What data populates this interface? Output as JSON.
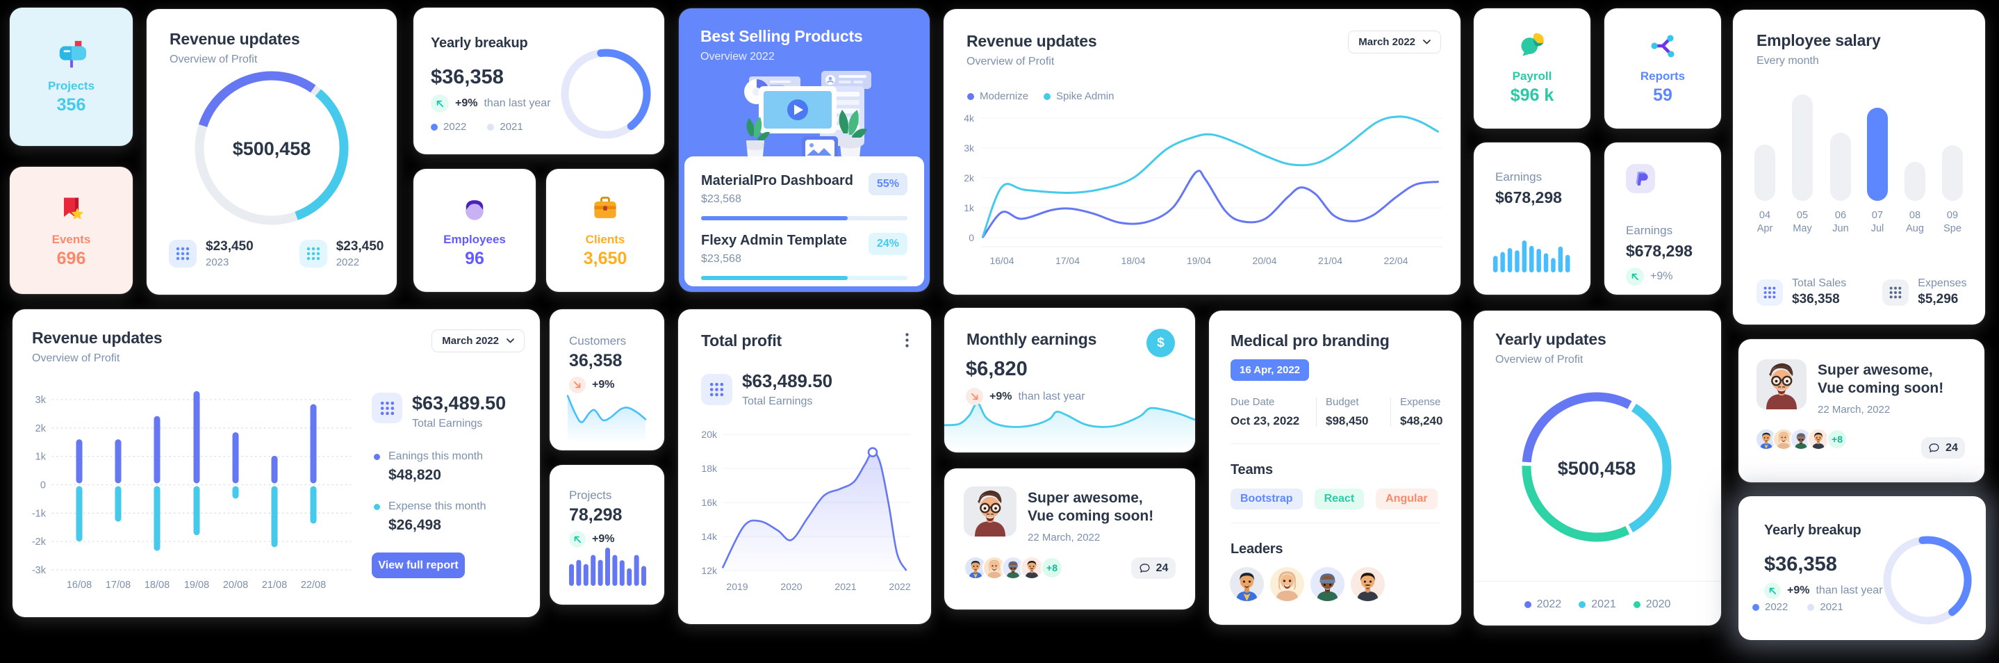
{
  "palette": {
    "primary": "#5D87FF",
    "indigo": "#6577F3",
    "sky": "#46CAEB",
    "sky_bars": "#49BEFF",
    "teal": "#2ED3A5",
    "teal_text": "#13C9A7",
    "orange": "#FFAE1F",
    "coral": "#FA896B",
    "purple": "#635BFF",
    "dark_text": "#2A3547",
    "muted_text": "#7C8FAC"
  },
  "cards": {
    "projects": {
      "label": "Projects",
      "value": "356"
    },
    "events": {
      "label": "Events",
      "value": "696"
    },
    "revenue_overview": {
      "title": "Revenue updates",
      "subtitle": "Overview of Profit",
      "center_value": "$500,458",
      "stats": [
        {
          "value": "$23,450",
          "year": "2023"
        },
        {
          "value": "$23,450",
          "year": "2022"
        }
      ]
    },
    "yearly_breakup": {
      "title": "Yearly breakup",
      "value": "$36,358",
      "delta": "+9%",
      "delta_note": "than last year",
      "legend": [
        "2022",
        "2021"
      ]
    },
    "employees": {
      "label": "Employees",
      "value": "96"
    },
    "clients": {
      "label": "Clients",
      "value": "3,650"
    },
    "best_selling": {
      "title": "Best Selling Products",
      "subtitle": "Overview 2022",
      "products": [
        {
          "name": "MaterialPro Dashboard",
          "amount": "$23,568",
          "badge": "55%"
        },
        {
          "name": "Flexy Admin Template",
          "amount": "$23,568",
          "badge": "24%"
        }
      ]
    },
    "revenue_line": {
      "title": "Revenue updates",
      "subtitle": "Overview of Profit",
      "dropdown": "March 2022"
    },
    "payroll": {
      "label": "Payroll",
      "value": "$96 k"
    },
    "reports": {
      "label": "Reports",
      "value": "59"
    },
    "earnings_sky": {
      "label": "Earnings",
      "value": "$678,298"
    },
    "earnings_paypal": {
      "label": "Earnings",
      "value": "$678,298",
      "delta": "+9%"
    },
    "employee_salary": {
      "title": "Employee salary",
      "subtitle": "Every month",
      "stats": [
        {
          "label": "Total Sales",
          "value": "$36,358"
        },
        {
          "label": "Expenses",
          "value": "$5,296"
        }
      ]
    },
    "revenue_bars": {
      "title": "Revenue updates",
      "subtitle": "Overview of Profit",
      "dropdown": "March 2022",
      "total": "$63,489.50",
      "total_label": "Total Earnings",
      "items": [
        {
          "label": "Eanings this month",
          "value": "$48,820"
        },
        {
          "label": "Expense this month",
          "value": "$26,498"
        }
      ],
      "button": "View full report"
    },
    "customers": {
      "label": "Customers",
      "value": "36,358",
      "delta": "+9%"
    },
    "projects_mini": {
      "label": "Projects",
      "value": "78,298",
      "delta": "+9%"
    },
    "total_profit": {
      "title": "Total profit",
      "value": "$63,489.50",
      "value_label": "Total Earnings"
    },
    "monthly_earnings": {
      "title": "Monthly earnings",
      "value": "$6,820",
      "delta": "+9%",
      "delta_note": "than last year",
      "icon_symbol": "$"
    },
    "post": {
      "title_line1": "Super awesome,",
      "title_line2": "Vue coming soon!",
      "date": "22 March, 2022",
      "more": "+8",
      "comments": "24"
    },
    "medical": {
      "title": "Medical pro branding",
      "date_chip": "16 Apr, 2022",
      "fields": [
        {
          "label": "Due Date",
          "value": "Oct 23, 2022"
        },
        {
          "label": "Budget",
          "value": "$98,450"
        },
        {
          "label": "Expense",
          "value": "$48,240"
        }
      ],
      "teams_label": "Teams",
      "teams": [
        "Bootstrap",
        "React",
        "Angular"
      ],
      "leaders_label": "Leaders"
    },
    "yearly_updates": {
      "title": "Yearly updates",
      "subtitle": "Overview of Profit",
      "center_value": "$500,458",
      "legend": [
        "2022",
        "2021",
        "2020"
      ]
    }
  },
  "chart_data": [
    {
      "id": "revenue_overview_donut",
      "type": "pie",
      "center_label": "$500,458",
      "track_color": "#E9EDF2",
      "segments": [
        {
          "name": "2023",
          "start_deg": 288,
          "sweep_deg": 107,
          "color": "#6577F3"
        },
        {
          "name": "2022",
          "start_deg": 40,
          "sweep_deg": 120,
          "color": "#46CAEB"
        }
      ]
    },
    {
      "id": "yearly_breakup_donut",
      "type": "pie",
      "track_color": "#E4E8FA",
      "segments": [
        {
          "name": "2022",
          "start_deg": -7,
          "sweep_deg": 149,
          "color": "#5D87FF"
        }
      ]
    },
    {
      "id": "best_selling_progress",
      "type": "bar",
      "items": [
        {
          "name": "MaterialPro Dashboard",
          "badge": "55%",
          "fill_pct": 71,
          "color": "#5D87FF",
          "track": "#E3ECFB",
          "badge_bg": "#E3ECFB",
          "badge_color": "#5D87FF"
        },
        {
          "name": "Flexy Admin Template",
          "badge": "24%",
          "fill_pct": 71,
          "color": "#46CAEB",
          "track": "#E0F6FD",
          "badge_bg": "#E0F6FD",
          "badge_color": "#46CAEB"
        }
      ]
    },
    {
      "id": "revenue_updates_line",
      "type": "line",
      "x_ticks": [
        "16/04",
        "17/04",
        "18/04",
        "19/04",
        "20/04",
        "21/04",
        "22/04"
      ],
      "y_ticks": [
        "0",
        "1k",
        "2k",
        "3k",
        "4k"
      ],
      "ylim": [
        0,
        4000
      ],
      "series": [
        {
          "name": "Modernize",
          "color": "#6577F3",
          "points": [
            [
              -0.29,
              0.02
            ],
            [
              0,
              0.85
            ],
            [
              0.3,
              0.63
            ],
            [
              0.75,
              0.92
            ],
            [
              1.05,
              0.97
            ],
            [
              1.4,
              0.8
            ],
            [
              1.8,
              0.5
            ],
            [
              2.2,
              0.52
            ],
            [
              2.6,
              1.0
            ],
            [
              2.95,
              2.18
            ],
            [
              3.1,
              1.95
            ],
            [
              3.4,
              0.9
            ],
            [
              3.65,
              0.55
            ],
            [
              4.0,
              0.62
            ],
            [
              4.35,
              1.35
            ],
            [
              4.55,
              1.68
            ],
            [
              4.78,
              1.45
            ],
            [
              5.05,
              0.75
            ],
            [
              5.35,
              0.55
            ],
            [
              5.65,
              0.75
            ],
            [
              6.0,
              1.35
            ],
            [
              6.3,
              1.78
            ],
            [
              6.64,
              1.87
            ]
          ]
        },
        {
          "name": "Spike Admin",
          "color": "#46CAEB",
          "points": [
            [
              -0.29,
              0.05
            ],
            [
              0,
              1.7
            ],
            [
              0.35,
              1.6
            ],
            [
              1,
              1.5
            ],
            [
              1.5,
              1.62
            ],
            [
              2,
              2.0
            ],
            [
              2.5,
              2.95
            ],
            [
              2.9,
              3.35
            ],
            [
              3.2,
              3.45
            ],
            [
              3.6,
              3.15
            ],
            [
              4.0,
              2.75
            ],
            [
              4.4,
              2.45
            ],
            [
              4.8,
              2.5
            ],
            [
              5.2,
              3.0
            ],
            [
              5.7,
              3.85
            ],
            [
              6.05,
              4.05
            ],
            [
              6.35,
              3.9
            ],
            [
              6.64,
              3.55
            ]
          ]
        }
      ]
    },
    {
      "id": "earnings_mini_bars",
      "type": "bar",
      "color": "#49BEFF",
      "values": [
        52,
        64,
        76,
        69,
        100,
        83,
        74,
        60,
        45,
        81,
        55
      ]
    },
    {
      "id": "employee_salary_bars",
      "type": "bar",
      "categories": [
        "04",
        "05",
        "06",
        "07",
        "08",
        "09"
      ],
      "categories2": [
        "Apr",
        "May",
        "Jun",
        "Jul",
        "Aug",
        "Spe"
      ],
      "values": [
        81,
        153,
        98,
        134,
        56,
        80
      ],
      "highlight_index": 3,
      "bar_color": "#EEF0F4",
      "highlight_color": "#5D87FF"
    },
    {
      "id": "revenue_posneg_bars",
      "type": "bar",
      "categories": [
        "16/08",
        "17/08",
        "18/08",
        "19/08",
        "20/08",
        "21/08",
        "22/08"
      ],
      "y_ticks": [
        "3k",
        "2k",
        "1k",
        "0",
        "-1k",
        "-2k",
        "-3k"
      ],
      "ylim": [
        -3000,
        3000
      ],
      "series": [
        {
          "name": "Earnings this month",
          "color": "#6577F3",
          "values": [
            1.6,
            1.6,
            2.42,
            3.3,
            1.85,
            1.02,
            2.84
          ]
        },
        {
          "name": "Expense this month",
          "color": "#46CAEB",
          "values": [
            -2.0,
            -1.3,
            -2.33,
            -1.78,
            -0.49,
            -2.2,
            -1.37
          ]
        }
      ]
    },
    {
      "id": "customers_spark",
      "type": "area",
      "color": "#49BEFF",
      "points": [
        [
          0,
          95
        ],
        [
          0.1,
          45
        ],
        [
          0.18,
          22
        ],
        [
          0.28,
          48
        ],
        [
          0.35,
          55
        ],
        [
          0.45,
          28
        ],
        [
          0.55,
          35
        ],
        [
          0.68,
          58
        ],
        [
          0.78,
          62
        ],
        [
          0.9,
          48
        ],
        [
          1,
          30
        ]
      ]
    },
    {
      "id": "projects_mini_bars",
      "type": "bar",
      "color": "#6577F3",
      "values": [
        57,
        68,
        57,
        81,
        68,
        100,
        81,
        67,
        46,
        81,
        52
      ]
    },
    {
      "id": "total_profit_area",
      "type": "area",
      "color": "#6577F3",
      "x_ticks": [
        "2019",
        "2020",
        "2021",
        "2022"
      ],
      "y_ticks": [
        "12k",
        "14k",
        "16k",
        "18k",
        "20k"
      ],
      "ylim": [
        12000,
        20000
      ],
      "points": [
        [
          -0.27,
          12.15
        ],
        [
          0.12,
          14.6
        ],
        [
          0.42,
          14.9
        ],
        [
          0.75,
          14.35
        ],
        [
          1.0,
          13.8
        ],
        [
          1.3,
          15.1
        ],
        [
          1.6,
          16.4
        ],
        [
          1.9,
          16.8
        ],
        [
          2.15,
          17.2
        ],
        [
          2.35,
          18.2
        ],
        [
          2.5,
          18.95
        ],
        [
          2.64,
          18.3
        ],
        [
          2.8,
          15.8
        ],
        [
          2.95,
          13.0
        ],
        [
          3.12,
          12.0
        ]
      ],
      "marker": [
        2.5,
        18.95
      ]
    },
    {
      "id": "monthly_earnings_spark",
      "type": "area",
      "color": "#46CAEB",
      "points": [
        [
          0,
          30
        ],
        [
          0.06,
          33
        ],
        [
          0.1,
          52
        ],
        [
          0.132,
          80
        ],
        [
          0.165,
          48
        ],
        [
          0.21,
          32
        ],
        [
          0.28,
          26
        ],
        [
          0.36,
          31
        ],
        [
          0.42,
          44
        ],
        [
          0.447,
          60
        ],
        [
          0.49,
          52
        ],
        [
          0.56,
          32
        ],
        [
          0.63,
          26
        ],
        [
          0.7,
          31
        ],
        [
          0.78,
          50
        ],
        [
          0.82,
          68
        ],
        [
          0.88,
          64
        ],
        [
          0.94,
          55
        ],
        [
          1,
          42
        ]
      ]
    },
    {
      "id": "yearly_updates_donut",
      "type": "pie",
      "center_label": "$500,458",
      "segments": [
        {
          "name": "2022",
          "start_deg": 274,
          "sweep_deg": 114,
          "color": "#6577F3"
        },
        {
          "name": "2021",
          "start_deg": 32,
          "sweep_deg": 119,
          "color": "#46CAEB"
        },
        {
          "name": "2020",
          "start_deg": 154,
          "sweep_deg": 117,
          "color": "#2ED3A5"
        }
      ]
    },
    {
      "id": "yearly_breakup_donut_2",
      "type": "pie",
      "track_color": "#E4E8FA",
      "segments": [
        {
          "name": "2022",
          "start_deg": -7,
          "sweep_deg": 149,
          "color": "#5D87FF"
        }
      ]
    }
  ]
}
